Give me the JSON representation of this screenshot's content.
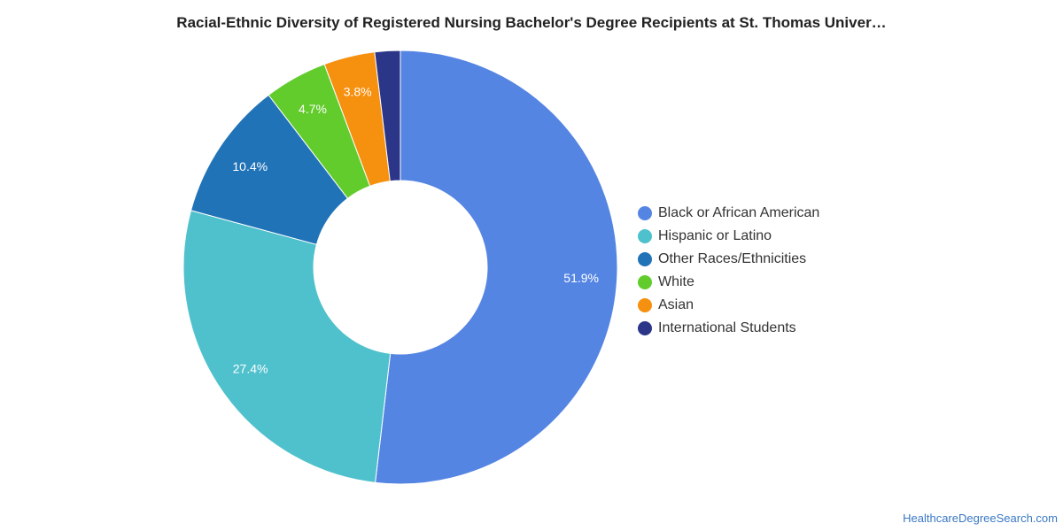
{
  "page": {
    "title": "Racial-Ethnic Diversity of Registered Nursing Bachelor's Degree Recipients at St. Thomas Univer…",
    "source": "HealthcareDegreeSearch.com"
  },
  "chart_data": {
    "type": "pie",
    "variant": "donut",
    "title": "Racial-Ethnic Diversity of Registered Nursing Bachelor's Degree Recipients at St. Thomas Univer…",
    "legend_position": "right",
    "categories": [
      "Black or African American",
      "Hispanic or Latino",
      "Other Races/Ethnicities",
      "White",
      "Asian",
      "International Students"
    ],
    "values": [
      51.9,
      27.4,
      10.4,
      4.7,
      3.8,
      1.9
    ],
    "labels": [
      "51.9%",
      "27.4%",
      "10.4%",
      "4.7%",
      "3.8%",
      ""
    ],
    "colors": [
      "#5585e3",
      "#4fc1cc",
      "#2173b8",
      "#62cc2c",
      "#f6900f",
      "#2b3689"
    ]
  }
}
